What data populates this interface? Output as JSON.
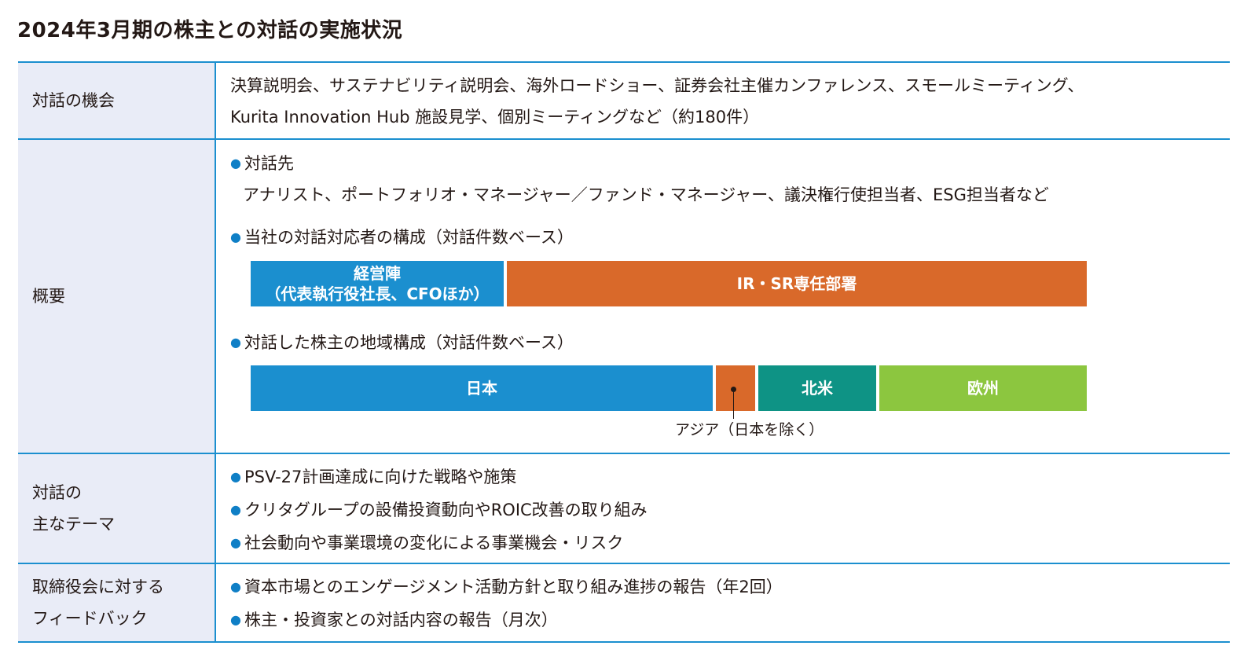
{
  "title": "2024年3月期の株主との対話の実施状況",
  "rows": {
    "opportunities": {
      "label": "対話の機会",
      "lines": [
        "決算説明会、サステナビリティ説明会、海外ロードショー、証券会社主催カンファレンス、スモールミーティング、",
        "Kurita Innovation Hub 施設見学、個別ミーティングなど（約180件）"
      ]
    },
    "overview": {
      "label": "概要",
      "partners_heading": "対話先",
      "partners_text": "アナリスト、ポートフォリオ・マネージャー／ファンド・マネージャー、議決権行使担当者、ESG担当者など",
      "composition_heading": "当社の対話対応者の構成（対話件数ベース）",
      "composition": {
        "management_line1": "経営陣",
        "management_line2": "（代表執行役社長、CFOほか）",
        "ir_sr": "IR・SR専任部署"
      },
      "region_heading": "対話した株主の地域構成（対話件数ベース）",
      "regions": {
        "japan": "日本",
        "north_america": "北米",
        "europe": "欧州",
        "asia_label": "アジア（日本を除く）"
      }
    },
    "themes": {
      "label_line1": "対話の",
      "label_line2": "主なテーマ",
      "items": [
        "PSV-27計画達成に向けた戦略や施策",
        "クリタグループの設備投資動向やROIC改善の取り組み",
        "社会動向や事業環境の変化による事業機会・リスク"
      ]
    },
    "feedback": {
      "label_line1": "取締役会に対する",
      "label_line2": "フィードバック",
      "items": [
        "資本市場とのエンゲージメント活動方針と取り組み進捗の報告（年2回）",
        "株主・投資家との対話内容の報告（月次）"
      ]
    }
  },
  "bullet_symbol": "●",
  "colors": {
    "rule_blue": "#1b8fcf",
    "header_bg": "#e9ecf7",
    "japan_blue": "#1b8fcf",
    "asia_orange": "#d9692a",
    "north_america_teal": "#0e9385",
    "europe_green": "#8cc63f"
  }
}
